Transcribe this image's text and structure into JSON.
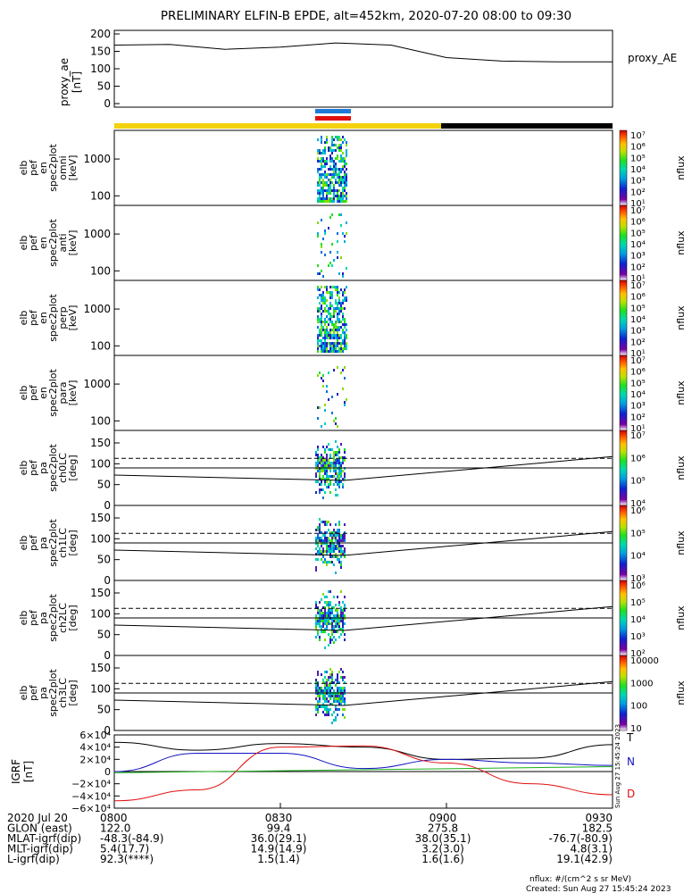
{
  "title": "PRELIMINARY ELFIN-B EPDE, alt=452km, 2020-07-20 08:00 to 09:30",
  "time_ticks": [
    "0800",
    "0830",
    "0900",
    "0930"
  ],
  "panels": [
    {
      "id": "ae",
      "ylabel": [
        "proxy_ae",
        "[nT]"
      ],
      "right_label": "proxy_AE"
    },
    {
      "id": "omni",
      "ylabel": [
        "elb",
        "pef",
        "en",
        "spec2plot",
        "omni",
        "[keV]"
      ],
      "yticks": [
        "1000",
        "100"
      ]
    },
    {
      "id": "anti",
      "ylabel": [
        "elb",
        "pef",
        "en",
        "spec2plot",
        "anti",
        "[keV]"
      ],
      "yticks": [
        "1000",
        "100"
      ]
    },
    {
      "id": "perp",
      "ylabel": [
        "elb",
        "pef",
        "en",
        "spec2plot",
        "perp",
        "[keV]"
      ],
      "yticks": [
        "1000",
        "100"
      ]
    },
    {
      "id": "para",
      "ylabel": [
        "elb",
        "pef",
        "en",
        "spec2plot",
        "para",
        "[keV]"
      ],
      "yticks": [
        "1000",
        "100"
      ]
    },
    {
      "id": "ch0",
      "ylabel": [
        "elb",
        "pef",
        "pa",
        "spec2plot",
        "ch0LC",
        "[deg]"
      ],
      "yticks": [
        "150",
        "100",
        "50",
        "0"
      ]
    },
    {
      "id": "ch1",
      "ylabel": [
        "elb",
        "pef",
        "pa",
        "spec2plot",
        "ch1LC",
        "[deg]"
      ],
      "yticks": [
        "150",
        "100",
        "50",
        "0"
      ]
    },
    {
      "id": "ch2",
      "ylabel": [
        "elb",
        "pef",
        "pa",
        "spec2plot",
        "ch2LC",
        "[deg]"
      ],
      "yticks": [
        "150",
        "100",
        "50",
        "0"
      ]
    },
    {
      "id": "ch3",
      "ylabel": [
        "elb",
        "pef",
        "pa",
        "spec2plot",
        "ch3LC",
        "[deg]"
      ],
      "yticks": [
        "150",
        "100",
        "50",
        "0"
      ]
    },
    {
      "id": "igrf",
      "ylabel": [
        "IGRF",
        "[nT]"
      ],
      "yticks": [
        "6×10⁴",
        "4×10⁴",
        "2×10⁴",
        "0",
        "−2×10⁴",
        "−4×10⁴",
        "−6×10⁴"
      ]
    }
  ],
  "colorbars": [
    {
      "labels": [
        "10⁷",
        "10⁶",
        "10⁵",
        "10⁴",
        "10³",
        "10²",
        "10¹"
      ],
      "unit": "nflux"
    },
    {
      "labels": [
        "10⁷",
        "10⁶",
        "10⁵",
        "10⁴",
        "10³",
        "10²",
        "10¹"
      ],
      "unit": "nflux"
    },
    {
      "labels": [
        "10⁷",
        "10⁶",
        "10⁵",
        "10⁴",
        "10³",
        "10²",
        "10¹"
      ],
      "unit": "nflux"
    },
    {
      "labels": [
        "10⁷",
        "10⁶",
        "10⁵",
        "10⁴",
        "10³",
        "10²",
        "10¹"
      ],
      "unit": "nflux"
    },
    {
      "labels": [
        "10⁷",
        "10⁶",
        "10⁵",
        "10⁴"
      ],
      "unit": "nflux"
    },
    {
      "labels": [
        "10⁶",
        "10⁵",
        "10⁴",
        "10³"
      ],
      "unit": "nflux"
    },
    {
      "labels": [
        "10⁶",
        "10⁵",
        "10⁴",
        "10³",
        "10²"
      ],
      "unit": "nflux"
    },
    {
      "labels": [
        "10000",
        "1000",
        "100",
        "10"
      ],
      "unit": "nflux"
    }
  ],
  "igrf_legend": [
    "T",
    "N",
    "D"
  ],
  "colors": {
    "yellow": "#f4d20f",
    "black": "#000000",
    "blue": "#1e7ad8",
    "red": "#e01010",
    "igrf_T": "#000000",
    "igrf_N": "#1010c0",
    "igrf_D": "#e01010",
    "igrf_green": "#18b018"
  },
  "orbit_bar": {
    "segments": [
      {
        "start": "0800",
        "end": "0900",
        "color": "yellow"
      },
      {
        "start": "0900",
        "end": "0930",
        "color": "black"
      }
    ],
    "markers": [
      "blue",
      "red"
    ]
  },
  "created_stamp": "Sun Aug 27 15:45:24 2023",
  "footer": {
    "rows": [
      [
        "2020 Jul 20",
        "0800",
        "0830",
        "0900",
        "0930"
      ],
      [
        "GLON (east)",
        "122.0",
        "99.4",
        "275.8",
        "182.5"
      ],
      [
        "MLAT-igrf(dip)",
        "-48.3(-84.9)",
        "36.0(29.1)",
        "38.0(35.1)",
        "-76.7(-80.9)"
      ],
      [
        "MLT-igrf(dip)",
        "5.4(17.7)",
        "14.9(14.9)",
        "3.2(3.0)",
        "4.8(3.1)"
      ],
      [
        "L-igrf(dip)",
        "92.3(****)",
        "1.5(1.4)",
        "1.6(1.6)",
        "19.1(42.9)"
      ]
    ],
    "units": "nflux: #/(cm^2 s sr MeV)",
    "created": "Created: Sun Aug 27 15:45:24 2023"
  },
  "chart_data": {
    "type": "heatmap",
    "x_range": [
      "08:00",
      "09:30"
    ],
    "proxy_AE": {
      "x": [
        "08:00",
        "08:10",
        "08:20",
        "08:30",
        "08:40",
        "08:50",
        "09:00",
        "09:10",
        "09:20",
        "09:30"
      ],
      "y": [
        168,
        170,
        156,
        162,
        174,
        168,
        132,
        122,
        120,
        120
      ],
      "ylim": [
        0,
        200
      ],
      "yticks": [
        0,
        50,
        100,
        150,
        200
      ]
    },
    "energy_spectra_ylim_keV": [
      55,
      6000
    ],
    "pitch_angle_ylim_deg": [
      0,
      180
    ],
    "loss_cone_dashed_deg": 113,
    "loss_cone_solid_deg": 90,
    "igrf_ylim": [
      -60000,
      60000
    ],
    "igrf": {
      "x": [
        "08:00",
        "08:15",
        "08:30",
        "08:45",
        "09:00",
        "09:15",
        "09:30"
      ],
      "T": [
        48000,
        35000,
        46000,
        40000,
        20000,
        22000,
        44000
      ],
      "N": [
        0,
        30000,
        30000,
        5000,
        20000,
        14000,
        10000
      ],
      "D": [
        -48000,
        -30000,
        40000,
        42000,
        14000,
        -20000,
        -38000
      ]
    }
  }
}
